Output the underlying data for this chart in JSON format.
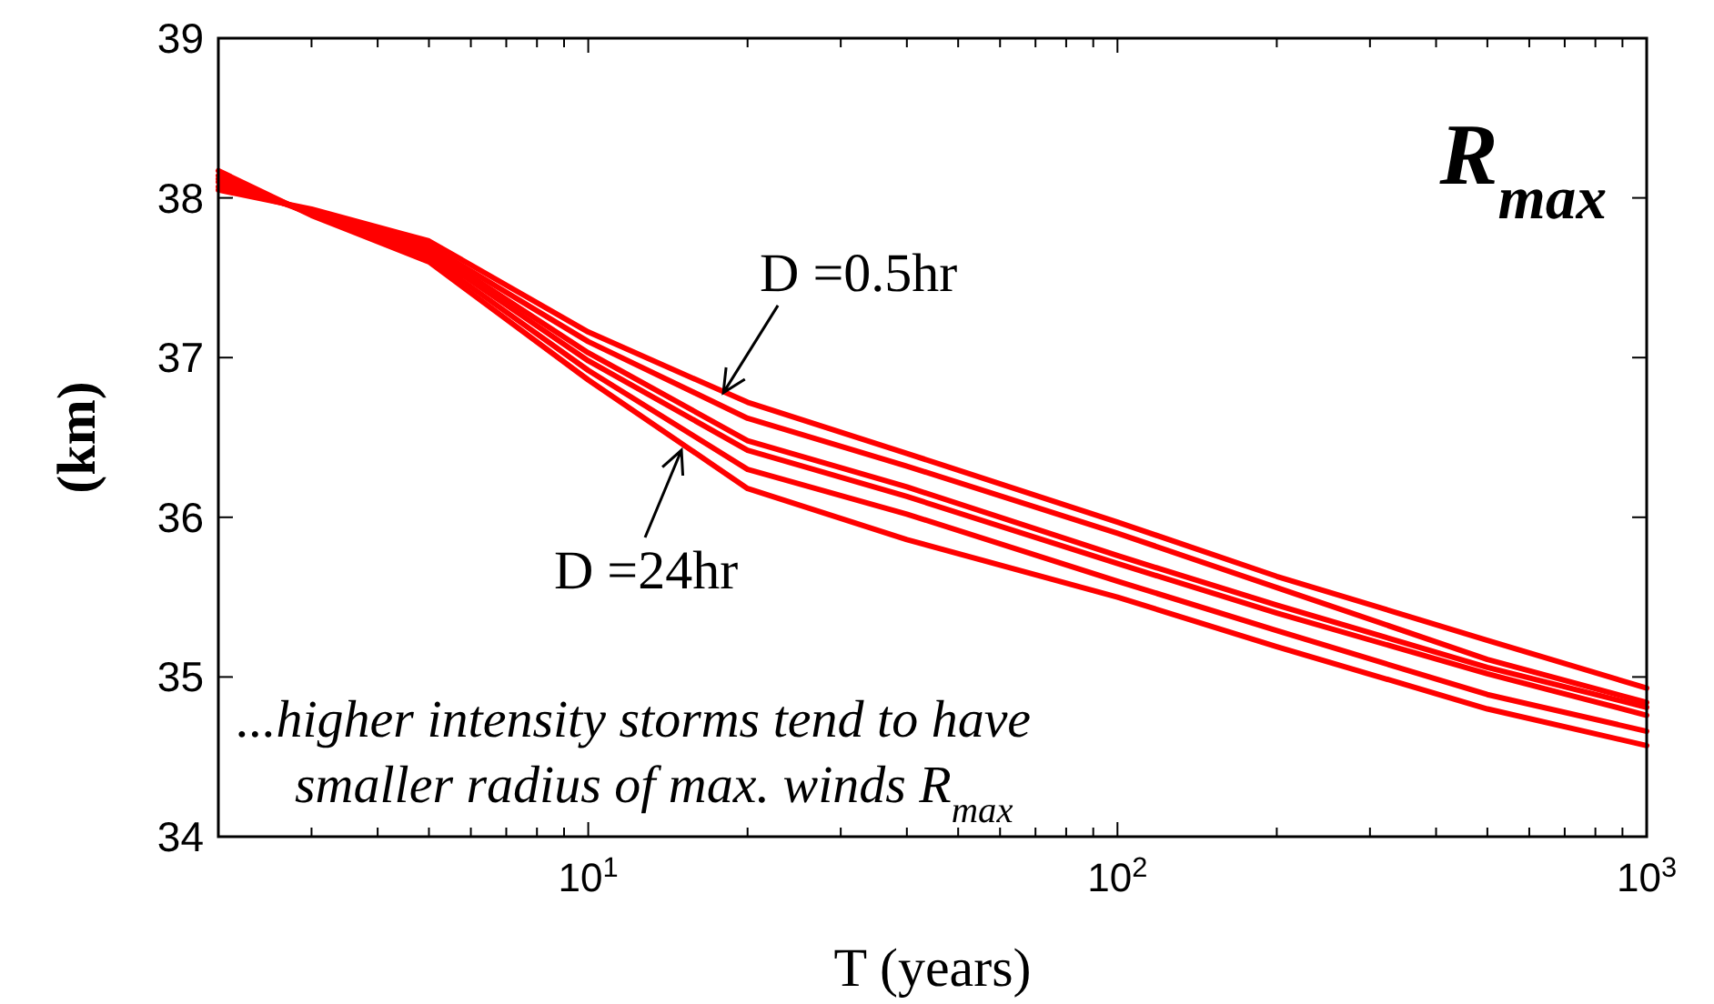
{
  "chart_data": {
    "type": "line",
    "title": "R$_{max}$",
    "xlabel": "T (years)",
    "ylabel": "(km)",
    "x": [
      2,
      3,
      5,
      10,
      20,
      40,
      100,
      200,
      500,
      1000
    ],
    "series": [
      {
        "color": "#ff0000",
        "values": [
          38.05,
          37.93,
          37.73,
          37.16,
          36.72,
          36.4,
          35.97,
          35.63,
          35.23,
          34.93
        ]
      },
      {
        "color": "#ff0000",
        "values": [
          38.07,
          37.92,
          37.7,
          37.1,
          36.62,
          36.32,
          35.9,
          35.56,
          35.11,
          34.84
        ]
      },
      {
        "color": "#ff0000",
        "values": [
          38.1,
          37.91,
          37.68,
          37.03,
          36.48,
          36.19,
          35.76,
          35.45,
          35.06,
          34.81
        ]
      },
      {
        "color": "#ff0000",
        "values": [
          38.12,
          37.9,
          37.66,
          36.98,
          36.42,
          36.13,
          35.71,
          35.4,
          35.02,
          34.76
        ]
      },
      {
        "color": "#ff0000",
        "values": [
          38.14,
          37.9,
          37.63,
          36.92,
          36.3,
          36.02,
          35.6,
          35.29,
          34.89,
          34.66
        ]
      },
      {
        "color": "#ff0000",
        "values": [
          38.17,
          37.89,
          37.6,
          36.86,
          36.18,
          35.86,
          35.5,
          35.19,
          34.8,
          34.57
        ]
      }
    ],
    "xlim": [
      2,
      1000
    ],
    "ylim": [
      34,
      39
    ],
    "log": "x",
    "xticks": [
      {
        "value": 2,
        "label": null
      },
      {
        "value": 3,
        "label": null
      },
      {
        "value": 4,
        "label": null
      },
      {
        "value": 5,
        "label": null
      },
      {
        "value": 6,
        "label": null
      },
      {
        "value": 7,
        "label": null
      },
      {
        "value": 8,
        "label": null
      },
      {
        "value": 9,
        "label": null
      },
      {
        "value": 10,
        "label": "10$^{1}$"
      },
      {
        "value": 20,
        "label": null
      },
      {
        "value": 30,
        "label": null
      },
      {
        "value": 40,
        "label": null
      },
      {
        "value": 50,
        "label": null
      },
      {
        "value": 60,
        "label": null
      },
      {
        "value": 70,
        "label": null
      },
      {
        "value": 80,
        "label": null
      },
      {
        "value": 90,
        "label": null
      },
      {
        "value": 100,
        "label": "10$^{2}$"
      },
      {
        "value": 200,
        "label": null
      },
      {
        "value": 300,
        "label": null
      },
      {
        "value": 400,
        "label": null
      },
      {
        "value": 500,
        "label": null
      },
      {
        "value": 600,
        "label": null
      },
      {
        "value": 700,
        "label": null
      },
      {
        "value": 800,
        "label": null
      },
      {
        "value": 900,
        "label": null
      },
      {
        "value": 1000,
        "label": "10$^{3}$"
      }
    ],
    "yticks": [
      34,
      35,
      36,
      37,
      38,
      39
    ],
    "grid": false,
    "marker": "none",
    "line_style": "solid",
    "annotations": [
      {
        "text": "D =0.5hr",
        "x": 18,
        "y": 36.78
      },
      {
        "text": "D =24hr",
        "x": 15,
        "y": 36.42
      },
      "...higher intensity storms tend to have",
      "smaller radius of max. winds R$_{max}$"
    ]
  }
}
